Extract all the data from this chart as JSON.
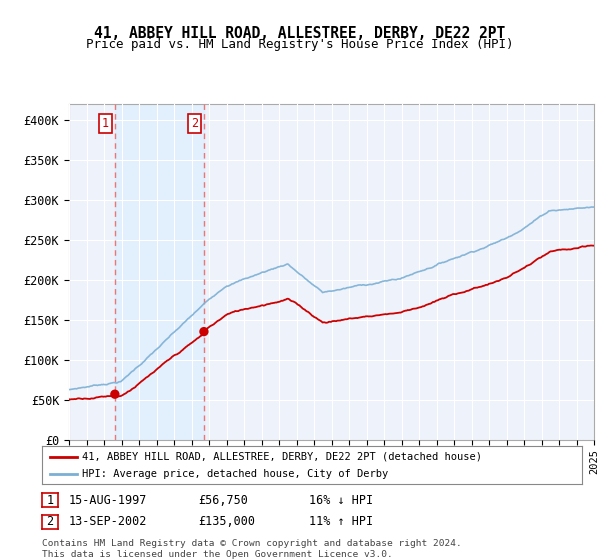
{
  "title": "41, ABBEY HILL ROAD, ALLESTREE, DERBY, DE22 2PT",
  "subtitle": "Price paid vs. HM Land Registry's House Price Index (HPI)",
  "ylim": [
    0,
    420000
  ],
  "yticks": [
    0,
    50000,
    100000,
    150000,
    200000,
    250000,
    300000,
    350000,
    400000
  ],
  "ytick_labels": [
    "£0",
    "£50K",
    "£100K",
    "£150K",
    "£200K",
    "£250K",
    "£300K",
    "£350K",
    "£400K"
  ],
  "sale1_date": 1997.62,
  "sale1_price": 56750,
  "sale2_date": 2002.71,
  "sale2_price": 135000,
  "hpi_color": "#7bafd4",
  "price_color": "#cc0000",
  "dashed_color": "#e87878",
  "shade_color": "#ddeeff",
  "background_color": "#eef2fa",
  "grid_color": "#ffffff",
  "legend1_text": "41, ABBEY HILL ROAD, ALLESTREE, DERBY, DE22 2PT (detached house)",
  "legend2_text": "HPI: Average price, detached house, City of Derby",
  "table_row1": [
    "1",
    "15-AUG-1997",
    "£56,750",
    "16% ↓ HPI"
  ],
  "table_row2": [
    "2",
    "13-SEP-2002",
    "£135,000",
    "11% ↑ HPI"
  ],
  "footer": "Contains HM Land Registry data © Crown copyright and database right 2024.\nThis data is licensed under the Open Government Licence v3.0.",
  "xmin": 1995,
  "xmax": 2025
}
